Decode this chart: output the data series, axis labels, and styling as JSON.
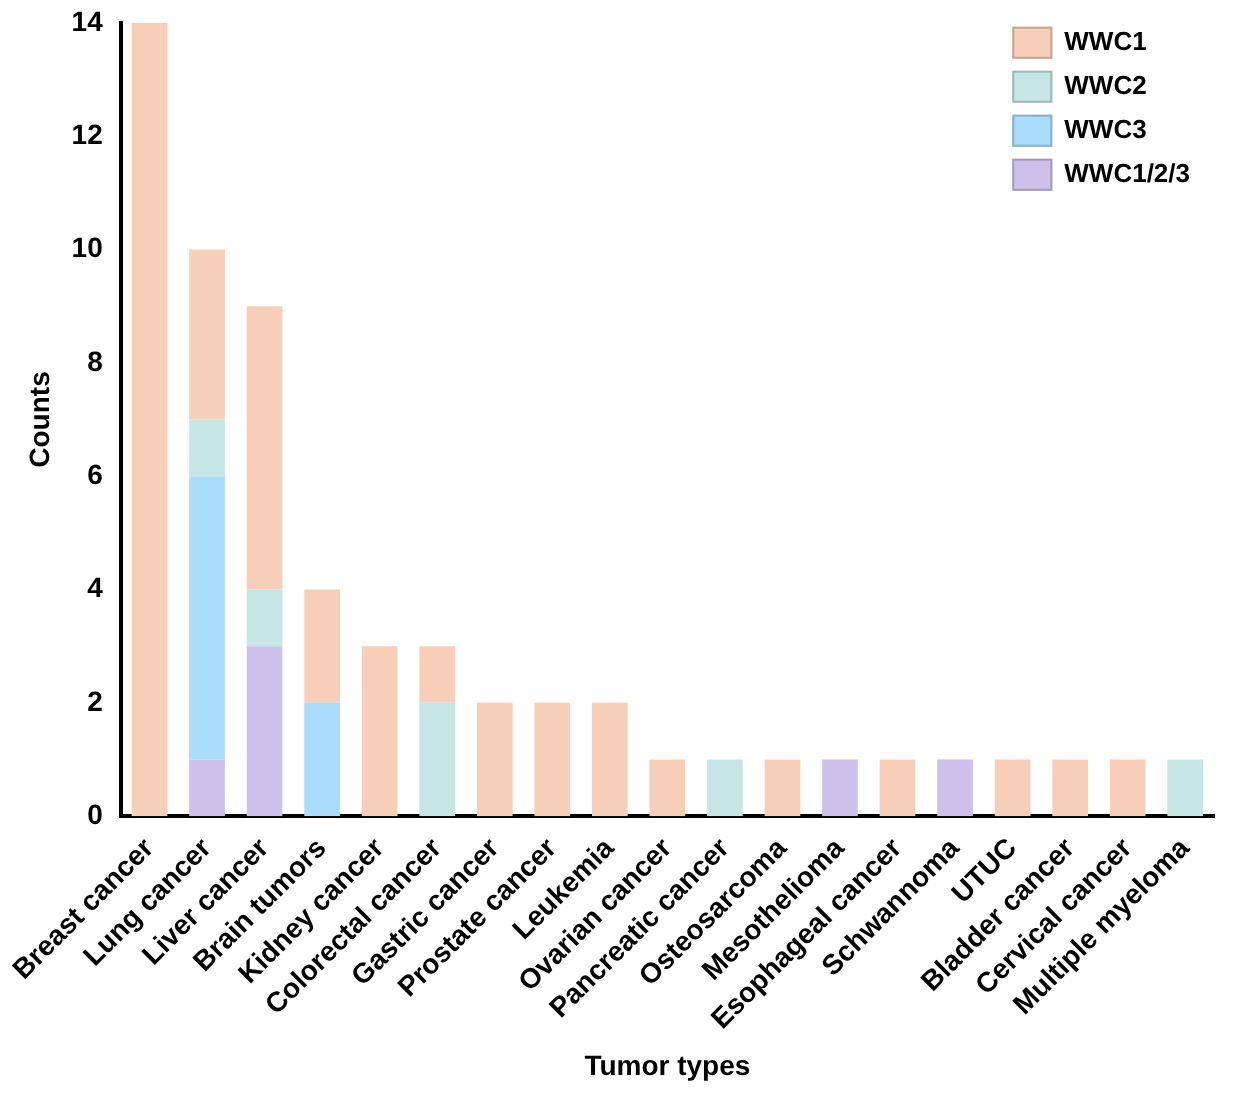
{
  "chart_data": {
    "type": "bar",
    "stacked": true,
    "xlabel": "Tumor types",
    "ylabel": "Counts",
    "categories": [
      "Breast cancer",
      "Lung cancer",
      "Liver cancer",
      "Brain tumors",
      "Kidney cancer",
      "Colorectal cancer",
      "Gastric cancer",
      "Prostate cancer",
      "Leukemia",
      "Ovarian cancer",
      "Pancreatic cancer",
      "Osteosarcoma",
      "Mesothelioma",
      "Esophageal cancer",
      "Schwannoma",
      "UTUC",
      "Bladder cancer",
      "Cervical cancer",
      "Multiple myeloma"
    ],
    "series": [
      {
        "name": "WWC1/2/3",
        "color": "#cdc0ea",
        "values": [
          0,
          1,
          3,
          0,
          0,
          0,
          0,
          0,
          0,
          0,
          0,
          0,
          1,
          0,
          1,
          0,
          0,
          0,
          0
        ]
      },
      {
        "name": "WWC3",
        "color": "#aadcfc",
        "values": [
          0,
          5,
          0,
          2,
          0,
          0,
          0,
          0,
          0,
          0,
          0,
          0,
          0,
          0,
          0,
          0,
          0,
          0,
          0
        ]
      },
      {
        "name": "WWC2",
        "color": "#c6e6e6",
        "values": [
          0,
          1,
          1,
          0,
          0,
          2,
          0,
          0,
          0,
          0,
          1,
          0,
          0,
          0,
          0,
          0,
          0,
          0,
          1
        ]
      },
      {
        "name": "WWC1",
        "color": "#f7cfb8",
        "values": [
          14,
          3,
          5,
          2,
          3,
          1,
          2,
          2,
          2,
          1,
          0,
          1,
          0,
          1,
          0,
          1,
          1,
          1,
          0
        ]
      }
    ],
    "ylim": [
      0,
      14
    ],
    "yticks": [
      0,
      2,
      4,
      6,
      8,
      10,
      12,
      14
    ],
    "grid": false,
    "legend": "top right"
  }
}
